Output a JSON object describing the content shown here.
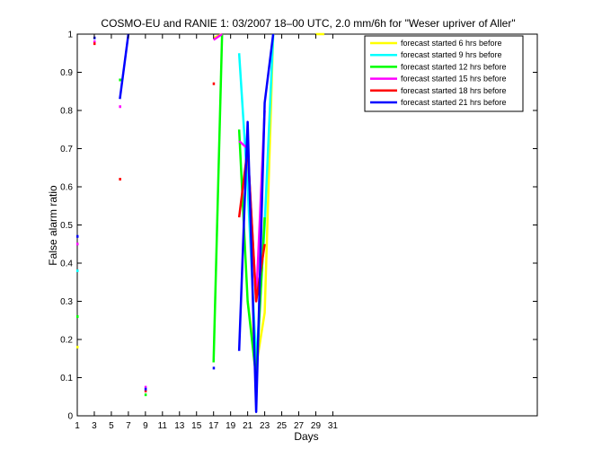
{
  "chart_data": {
    "type": "line",
    "title": "COSMO-EU and RANIE 1: 03/2007 18–00 UTC, 2.0 mm/6h for \"Weser upriver of Aller\"",
    "xlabel": "Days",
    "ylabel": "False alarm ratio",
    "xlim": [
      1,
      55
    ],
    "ylim": [
      0,
      1
    ],
    "x_ticks": [
      1,
      3,
      5,
      7,
      9,
      11,
      13,
      15,
      17,
      19,
      21,
      23,
      25,
      27,
      29,
      31
    ],
    "y_ticks": [
      0,
      0.1,
      0.2,
      0.3,
      0.4,
      0.5,
      0.6,
      0.7,
      0.8,
      0.9,
      1
    ],
    "y_tick_labels": [
      "0",
      "0.1",
      "0.2",
      "0.3",
      "0.4",
      "0.5",
      "0.6",
      "0.7",
      "0.8",
      "0.9",
      "1"
    ],
    "grid": false,
    "legend_position": "top-right",
    "series": [
      {
        "name": "forecast started 6 hrs before",
        "color": "#ffff00",
        "points": [
          [
            1,
            0.18
          ],
          [
            17,
            0.99
          ],
          [
            18,
            1.0
          ],
          [
            21,
            0.3
          ],
          [
            22,
            0.13
          ],
          [
            23,
            0.27
          ],
          [
            24,
            1.0
          ],
          [
            29,
            1.0
          ],
          [
            30,
            1.0
          ]
        ]
      },
      {
        "name": "forecast started 9 hrs before",
        "color": "#00ffff",
        "points": [
          [
            1,
            0.38
          ],
          [
            20,
            0.95
          ],
          [
            21,
            0.6
          ],
          [
            22,
            0.14
          ],
          [
            23,
            0.5
          ],
          [
            24,
            1.0
          ]
        ]
      },
      {
        "name": "forecast started 12 hrs before",
        "color": "#00ff00",
        "points": [
          [
            1,
            0.26
          ],
          [
            6,
            0.88
          ],
          [
            9,
            0.055
          ],
          [
            17,
            0.14
          ],
          [
            18,
            1.0
          ],
          [
            20,
            0.75
          ],
          [
            21,
            0.3
          ],
          [
            22,
            0.1
          ],
          [
            23,
            0.52
          ]
        ]
      },
      {
        "name": "forecast started 15 hrs before",
        "color": "#ff00ff",
        "points": [
          [
            1,
            0.45
          ],
          [
            3,
            0.98
          ],
          [
            6,
            0.81
          ],
          [
            9,
            0.075
          ],
          [
            17,
            0.985
          ],
          [
            18,
            1.0
          ],
          [
            20,
            0.72
          ],
          [
            21,
            0.7
          ],
          [
            22,
            0.3
          ],
          [
            23,
            0.8
          ]
        ]
      },
      {
        "name": "forecast started 18 hrs before",
        "color": "#ff0000",
        "points": [
          [
            3,
            0.975
          ],
          [
            6,
            0.62
          ],
          [
            9,
            0.065
          ],
          [
            17,
            0.87
          ],
          [
            20,
            0.52
          ],
          [
            21,
            0.7
          ],
          [
            22,
            0.3
          ],
          [
            23,
            0.45
          ]
        ]
      },
      {
        "name": "forecast started 21 hrs before",
        "color": "#0000ff",
        "points": [
          [
            1,
            0.47
          ],
          [
            3,
            0.99
          ],
          [
            6,
            0.83
          ],
          [
            7,
            1.0
          ],
          [
            9,
            0.07
          ],
          [
            17,
            0.125
          ],
          [
            20,
            0.17
          ],
          [
            21,
            0.77
          ],
          [
            22,
            0.01
          ],
          [
            23,
            0.82
          ],
          [
            24,
            1.0
          ]
        ]
      }
    ]
  }
}
